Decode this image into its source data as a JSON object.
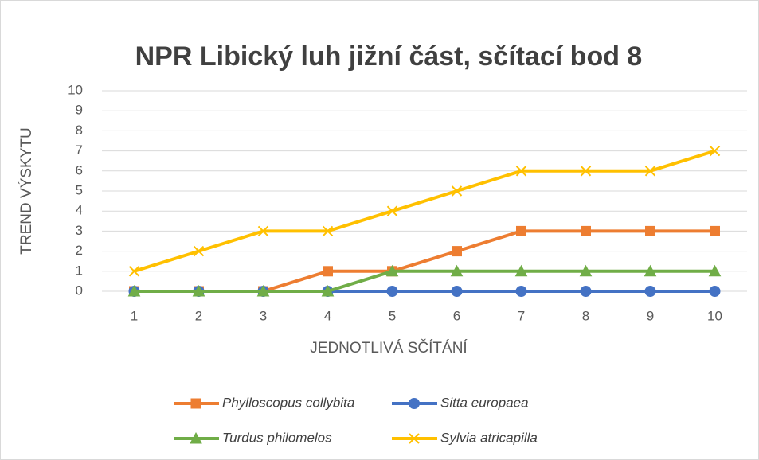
{
  "chart_data": {
    "type": "line",
    "title": "NPR Libický luh jižní část, sčítací bod 8",
    "x_label": "JEDNOTLIVÁ SČÍTÁNÍ",
    "y_label": "TREND VÝSKYTU",
    "categories": [
      "1",
      "2",
      "3",
      "4",
      "5",
      "6",
      "7",
      "8",
      "9",
      "10"
    ],
    "series": [
      {
        "name": "Phylloscopus collybita",
        "color": "#ED7D31",
        "marker": "square",
        "values": [
          0,
          0,
          0,
          1,
          1,
          2,
          3,
          3,
          3,
          3
        ]
      },
      {
        "name": "Sitta europaea",
        "color": "#4472C4",
        "marker": "circle",
        "values": [
          0,
          0,
          0,
          0,
          0,
          0,
          0,
          0,
          0,
          0
        ]
      },
      {
        "name": "Turdus philomelos",
        "color": "#70AD47",
        "marker": "triangle",
        "values": [
          0,
          0,
          0,
          0,
          1,
          1,
          1,
          1,
          1,
          1
        ]
      },
      {
        "name": "Sylvia atricapilla",
        "color": "#FFC000",
        "marker": "x",
        "values": [
          1,
          2,
          3,
          3,
          4,
          5,
          6,
          6,
          6,
          7
        ]
      }
    ],
    "ylim": [
      0,
      10
    ],
    "yticks": [
      0,
      1,
      2,
      3,
      4,
      5,
      6,
      7,
      8,
      9,
      10
    ],
    "grid": true,
    "legend": "bottom"
  }
}
